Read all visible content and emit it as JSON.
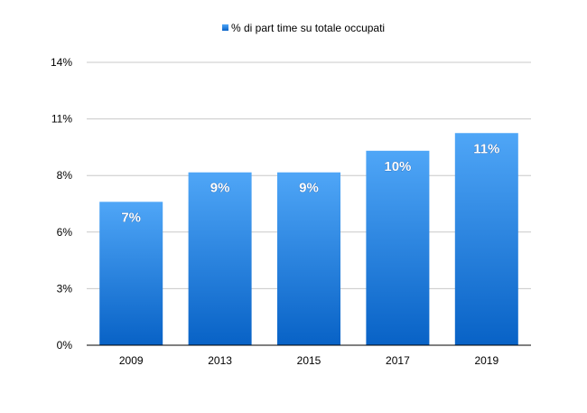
{
  "chart_data": {
    "type": "bar",
    "categories": [
      "2009",
      "2013",
      "2015",
      "2017",
      "2019"
    ],
    "series": [
      {
        "name": "% di part time su totale occupati",
        "values": [
          7.3,
          8.8,
          8.8,
          9.9,
          10.8
        ],
        "data_labels": [
          "7%",
          "9%",
          "9%",
          "10%",
          "11%"
        ]
      }
    ],
    "y_ticks": [
      "0%",
      "3%",
      "6%",
      "8%",
      "11%",
      "14%"
    ],
    "ylim": [
      0,
      14.4
    ],
    "grid": true,
    "legend_position": "top",
    "colors": {
      "bar_top": "#4fa6f7",
      "bar_bottom": "#0862c6",
      "grid": "#c8c8c8"
    }
  }
}
